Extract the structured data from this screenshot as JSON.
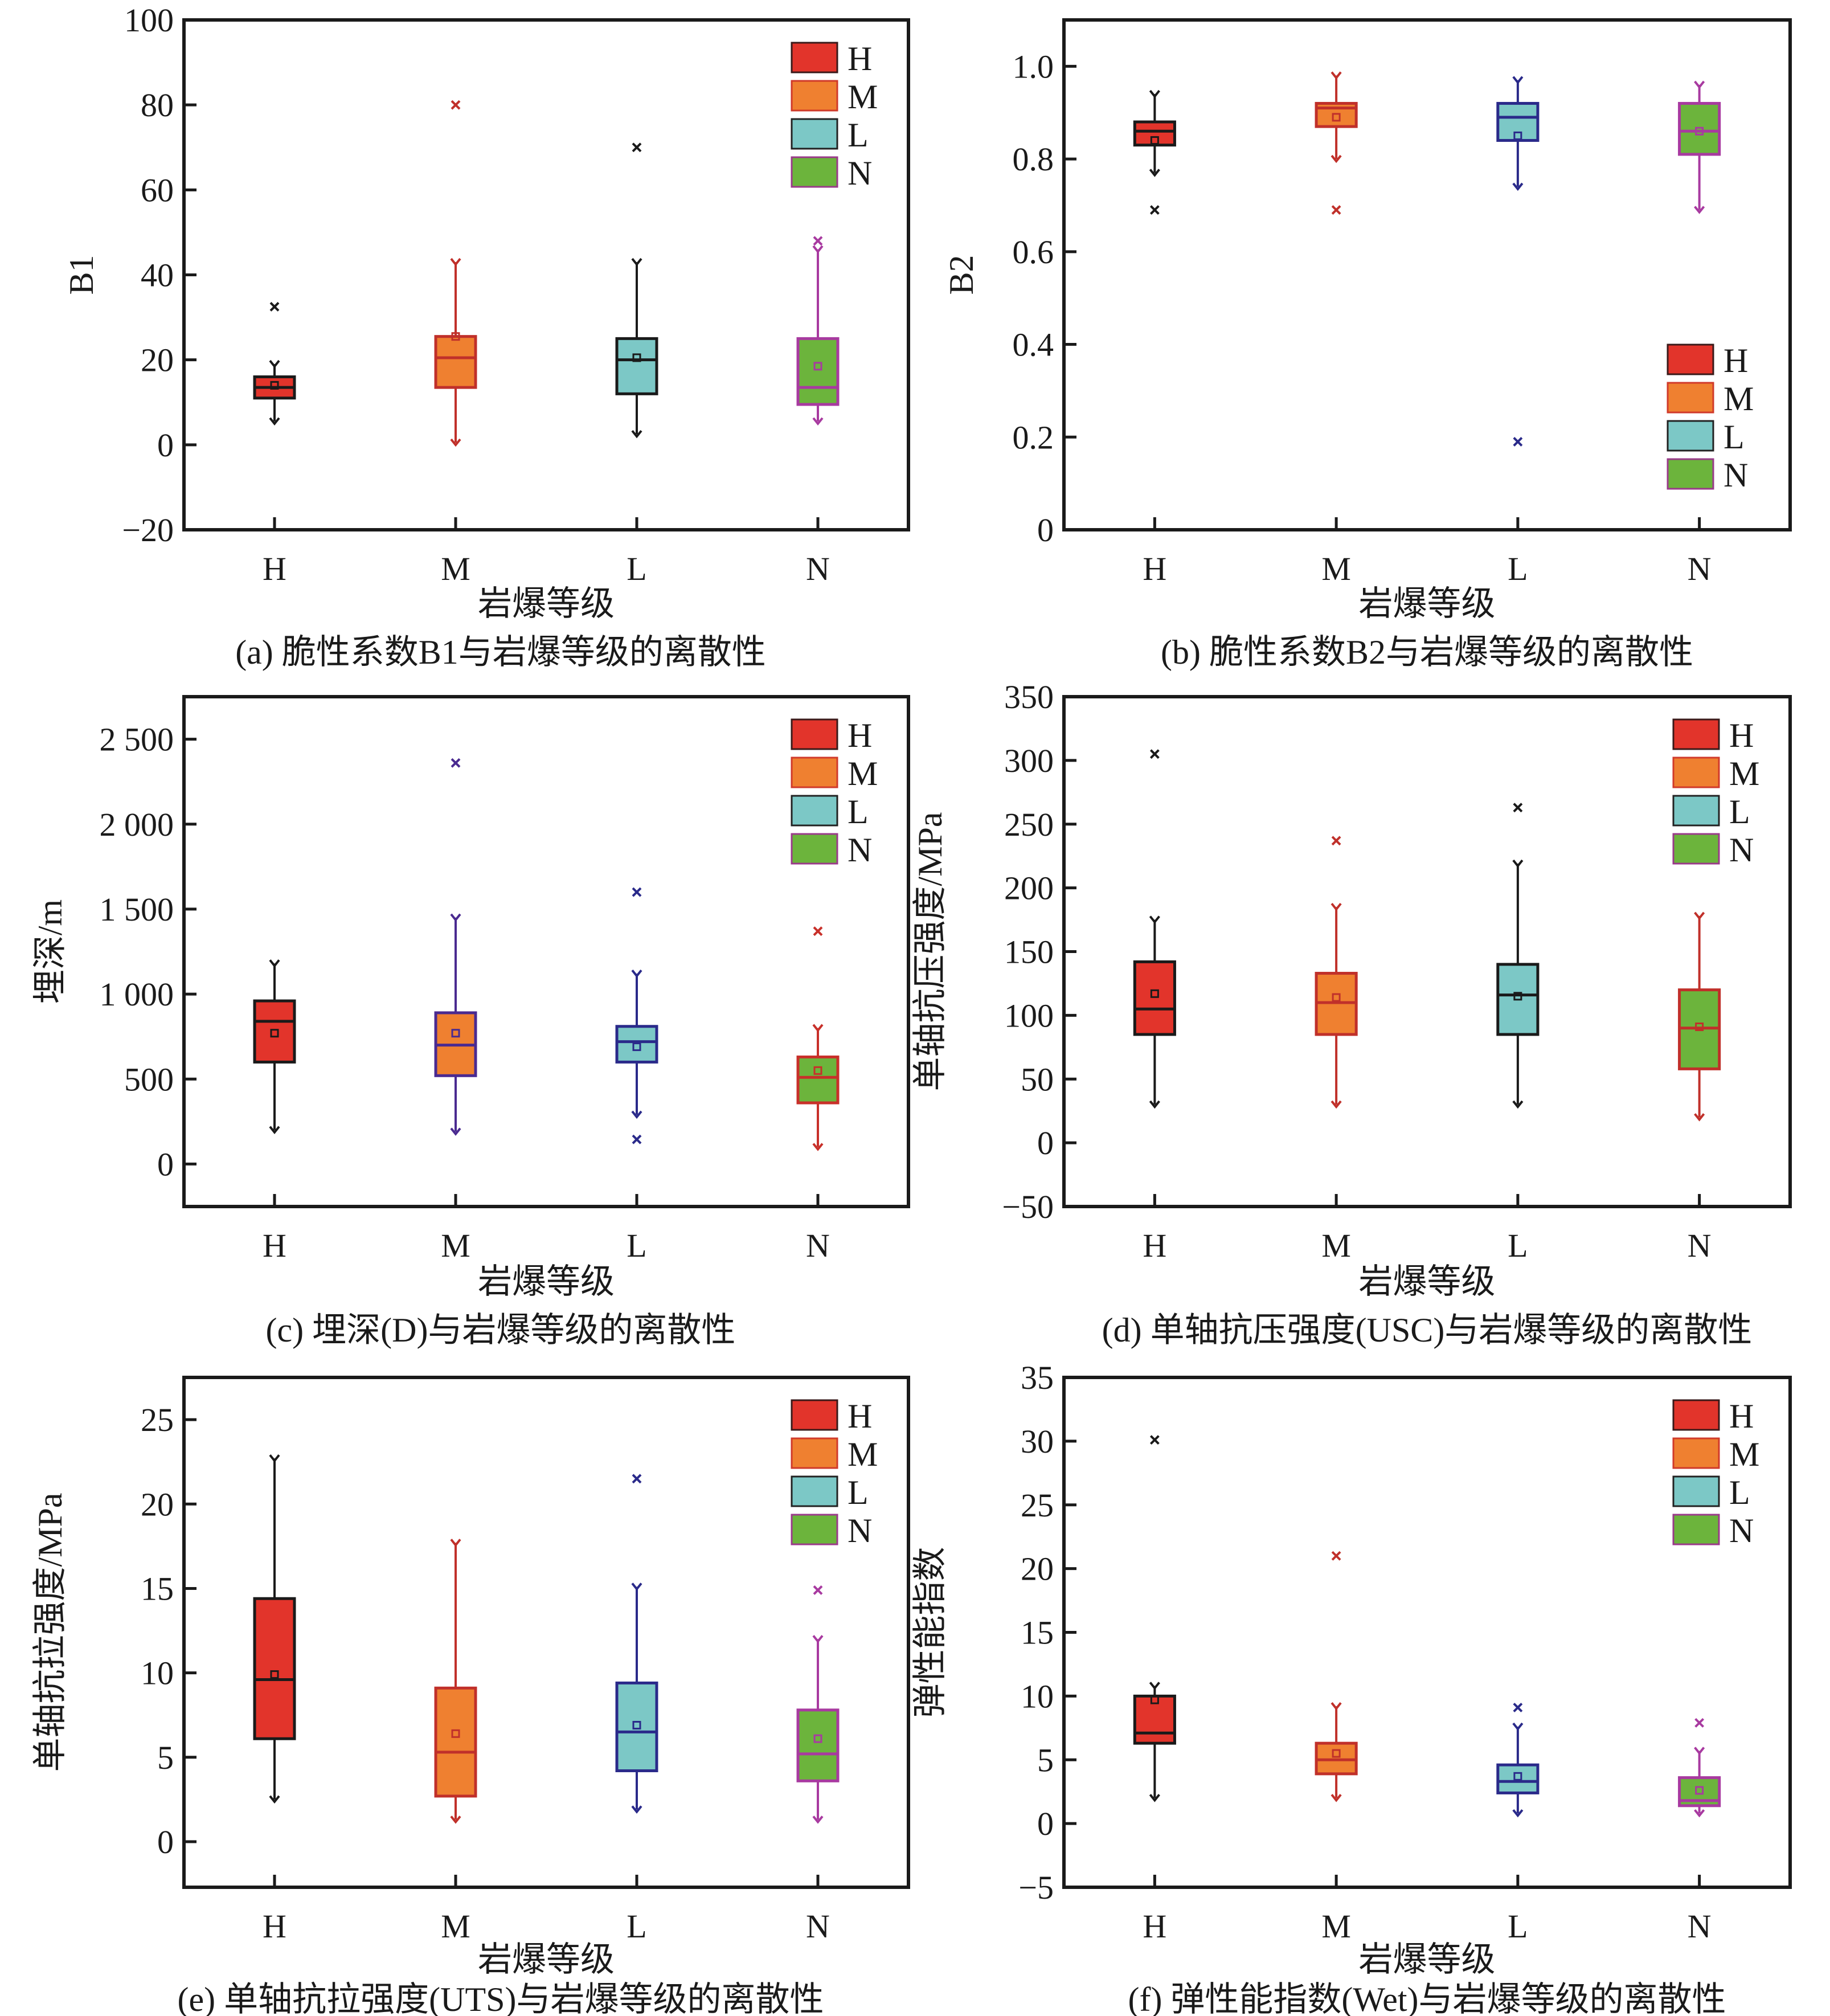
{
  "figure": {
    "categories": [
      "H",
      "M",
      "L",
      "N"
    ],
    "legend": [
      {
        "label": "H",
        "fill": "#e2342b",
        "stroke": "#3a1a1a"
      },
      {
        "label": "M",
        "fill": "#ef8030",
        "stroke": "#d03a2a"
      },
      {
        "label": "L",
        "fill": "#7cc8c6",
        "stroke": "#222222"
      },
      {
        "label": "N",
        "fill": "#6cb43c",
        "stroke": "#9a3a8a"
      }
    ],
    "xlabel": "岩爆等级"
  },
  "chart_data": [
    {
      "type": "box",
      "id": "a",
      "caption": "(a) 脆性系数B1与岩爆等级的离散性",
      "xlabel": "岩爆等级",
      "ylabel": "B1",
      "ylim": [
        -20,
        100
      ],
      "yticks": [
        -20,
        0,
        20,
        40,
        60,
        80,
        100
      ],
      "ytick_labels": [
        "−20",
        "0",
        "20",
        "40",
        "60",
        "80",
        "100"
      ],
      "legend_position": "top-right",
      "categories": [
        "H",
        "M",
        "L",
        "N"
      ],
      "boxes": [
        {
          "category": "H",
          "whisker_low": 5.5,
          "q1": 11,
          "median": 13.5,
          "q3": 16,
          "whisker_high": 19,
          "mean": 14,
          "outliers": [
            32.5
          ],
          "stroke": "#1a1a1a"
        },
        {
          "category": "M",
          "whisker_low": 0.5,
          "q1": 13.5,
          "median": 20.5,
          "q3": 25.5,
          "whisker_high": 43,
          "mean": 25.5,
          "outliers": [
            80
          ],
          "stroke": "#c0302a"
        },
        {
          "category": "L",
          "whisker_low": 2.5,
          "q1": 12,
          "median": 20,
          "q3": 25,
          "whisker_high": 43,
          "mean": 20.5,
          "outliers": [
            70
          ],
          "stroke": "#1a1a1a"
        },
        {
          "category": "N",
          "whisker_low": 5.5,
          "q1": 9.5,
          "median": 13.5,
          "q3": 25,
          "whisker_high": 46,
          "mean": 18.5,
          "outliers": [
            48
          ],
          "stroke": "#a83aa0"
        }
      ]
    },
    {
      "type": "box",
      "id": "b",
      "caption": "(b) 脆性系数B2与岩爆等级的离散性",
      "xlabel": "岩爆等级",
      "ylabel": "B2",
      "ylim": [
        0,
        1.1
      ],
      "yticks": [
        0,
        0.2,
        0.4,
        0.6,
        0.8,
        1.0
      ],
      "ytick_labels": [
        "0",
        "0.2",
        "0.4",
        "0.6",
        "0.8",
        "1.0"
      ],
      "legend_position": "bottom-right",
      "categories": [
        "H",
        "M",
        "L",
        "N"
      ],
      "boxes": [
        {
          "category": "H",
          "whisker_low": 0.77,
          "q1": 0.83,
          "median": 0.86,
          "q3": 0.88,
          "whisker_high": 0.94,
          "mean": 0.84,
          "outliers": [
            0.69
          ],
          "stroke": "#1a1a1a"
        },
        {
          "category": "M",
          "whisker_low": 0.8,
          "q1": 0.87,
          "median": 0.91,
          "q3": 0.92,
          "whisker_high": 0.98,
          "mean": 0.89,
          "outliers": [
            0.69
          ],
          "stroke": "#c0302a"
        },
        {
          "category": "L",
          "whisker_low": 0.74,
          "q1": 0.84,
          "median": 0.89,
          "q3": 0.92,
          "whisker_high": 0.97,
          "mean": 0.85,
          "outliers": [
            0.19
          ],
          "stroke": "#2a2a8a"
        },
        {
          "category": "N",
          "whisker_low": 0.69,
          "q1": 0.81,
          "median": 0.86,
          "q3": 0.92,
          "whisker_high": 0.96,
          "mean": 0.86,
          "outliers": [],
          "stroke": "#a83aa0"
        }
      ]
    },
    {
      "type": "box",
      "id": "c",
      "caption": "(c) 埋深(D)与岩爆等级的离散性",
      "xlabel": "岩爆等级",
      "ylabel": "埋深/m",
      "ylim": [
        -250,
        2750
      ],
      "yticks": [
        0,
        500,
        1000,
        1500,
        2000,
        2500
      ],
      "ytick_labels": [
        "0",
        "500",
        "1 000",
        "1 500",
        "2 000",
        "2 500"
      ],
      "legend_position": "top-right",
      "categories": [
        "H",
        "M",
        "L",
        "N"
      ],
      "boxes": [
        {
          "category": "H",
          "whisker_low": 200,
          "q1": 600,
          "median": 840,
          "q3": 960,
          "whisker_high": 1180,
          "mean": 770,
          "outliers": [],
          "stroke": "#1a1a1a"
        },
        {
          "category": "M",
          "whisker_low": 190,
          "q1": 520,
          "median": 700,
          "q3": 890,
          "whisker_high": 1450,
          "mean": 770,
          "outliers": [
            2360
          ],
          "stroke": "#4a2a90"
        },
        {
          "category": "L",
          "whisker_low": 290,
          "q1": 600,
          "median": 720,
          "q3": 810,
          "whisker_high": 1120,
          "mean": 690,
          "outliers": [
            1600,
            145
          ],
          "stroke": "#2a2a8a"
        },
        {
          "category": "N",
          "whisker_low": 100,
          "q1": 360,
          "median": 510,
          "q3": 630,
          "whisker_high": 800,
          "mean": 550,
          "outliers": [
            1370
          ],
          "stroke": "#c8302a"
        }
      ]
    },
    {
      "type": "box",
      "id": "d",
      "caption": "(d) 单轴抗压强度(USC)与岩爆等级的离散性",
      "xlabel": "岩爆等级",
      "ylabel": "单轴抗压强度/MPa",
      "ylim": [
        -50,
        350
      ],
      "yticks": [
        -50,
        0,
        50,
        100,
        150,
        200,
        250,
        300,
        350
      ],
      "ytick_labels": [
        "−50",
        "0",
        "50",
        "100",
        "150",
        "200",
        "250",
        "300",
        "350"
      ],
      "legend_position": "top-right",
      "categories": [
        "H",
        "M",
        "L",
        "N"
      ],
      "boxes": [
        {
          "category": "H",
          "whisker_low": 30,
          "q1": 85,
          "median": 105,
          "q3": 142,
          "whisker_high": 175,
          "mean": 117,
          "outliers": [
            305
          ],
          "stroke": "#1a1a1a"
        },
        {
          "category": "M",
          "whisker_low": 30,
          "q1": 85,
          "median": 110,
          "q3": 133,
          "whisker_high": 185,
          "mean": 114,
          "outliers": [
            237
          ],
          "stroke": "#c0302a"
        },
        {
          "category": "L",
          "whisker_low": 30,
          "q1": 85,
          "median": 116,
          "q3": 140,
          "whisker_high": 219,
          "mean": 115,
          "outliers": [
            263
          ],
          "stroke": "#1a1a1a"
        },
        {
          "category": "N",
          "whisker_low": 20,
          "q1": 58,
          "median": 90,
          "q3": 120,
          "whisker_high": 178,
          "mean": 91,
          "outliers": [],
          "stroke": "#c0302a"
        }
      ]
    },
    {
      "type": "box",
      "id": "e",
      "caption": "(e) 单轴抗拉强度(UTS)与岩爆等级的离散性",
      "xlabel": "岩爆等级",
      "ylabel": "单轴抗拉强度/MPa",
      "ylim": [
        -2.7,
        27.5
      ],
      "yticks": [
        0,
        5,
        10,
        15,
        20,
        25
      ],
      "ytick_labels": [
        "0",
        "5",
        "10",
        "15",
        "20",
        "25"
      ],
      "legend_position": "top-right",
      "categories": [
        "H",
        "M",
        "L",
        "N"
      ],
      "boxes": [
        {
          "category": "H",
          "whisker_low": 2.5,
          "q1": 6.1,
          "median": 9.6,
          "q3": 14.4,
          "whisker_high": 22.7,
          "mean": 9.9,
          "outliers": [],
          "stroke": "#1a1a1a"
        },
        {
          "category": "M",
          "whisker_low": 1.3,
          "q1": 2.7,
          "median": 5.3,
          "q3": 9.1,
          "whisker_high": 17.7,
          "mean": 6.4,
          "outliers": [],
          "stroke": "#c0302a"
        },
        {
          "category": "L",
          "whisker_low": 1.9,
          "q1": 4.2,
          "median": 6.5,
          "q3": 9.4,
          "whisker_high": 15.1,
          "mean": 6.9,
          "outliers": [
            21.5
          ],
          "stroke": "#2a2a8a"
        },
        {
          "category": "N",
          "whisker_low": 1.3,
          "q1": 3.6,
          "median": 5.2,
          "q3": 7.8,
          "whisker_high": 12.0,
          "mean": 6.1,
          "outliers": [
            14.9
          ],
          "stroke": "#a83aa0"
        }
      ]
    },
    {
      "type": "box",
      "id": "f",
      "caption": "(f)  弹性能指数(Wet)与岩爆等级的离散性",
      "xlabel": "岩爆等级",
      "ylabel": "弹性能指数",
      "ylim": [
        -5,
        35
      ],
      "yticks": [
        -5,
        0,
        5,
        10,
        15,
        20,
        25,
        30,
        35
      ],
      "ytick_labels": [
        "−5",
        "0",
        "5",
        "10",
        "15",
        "20",
        "25",
        "30",
        "35"
      ],
      "legend_position": "top-right",
      "categories": [
        "H",
        "M",
        "L",
        "N"
      ],
      "boxes": [
        {
          "category": "H",
          "whisker_low": 2.0,
          "q1": 6.3,
          "median": 7.1,
          "q3": 10.0,
          "whisker_high": 10.8,
          "mean": 9.7,
          "outliers": [
            30.1
          ],
          "stroke": "#1a1a1a"
        },
        {
          "category": "M",
          "whisker_low": 2.0,
          "q1": 3.9,
          "median": 5.0,
          "q3": 6.3,
          "whisker_high": 9.2,
          "mean": 5.5,
          "outliers": [
            21.0
          ],
          "stroke": "#c0302a"
        },
        {
          "category": "L",
          "whisker_low": 0.8,
          "q1": 2.4,
          "median": 3.3,
          "q3": 4.6,
          "whisker_high": 7.6,
          "mean": 3.7,
          "outliers": [
            9.1
          ],
          "stroke": "#2a2a8a"
        },
        {
          "category": "N",
          "whisker_low": 0.8,
          "q1": 1.4,
          "median": 1.8,
          "q3": 3.6,
          "whisker_high": 5.7,
          "mean": 2.6,
          "outliers": [
            7.9
          ],
          "stroke": "#a83aa0"
        }
      ]
    }
  ]
}
